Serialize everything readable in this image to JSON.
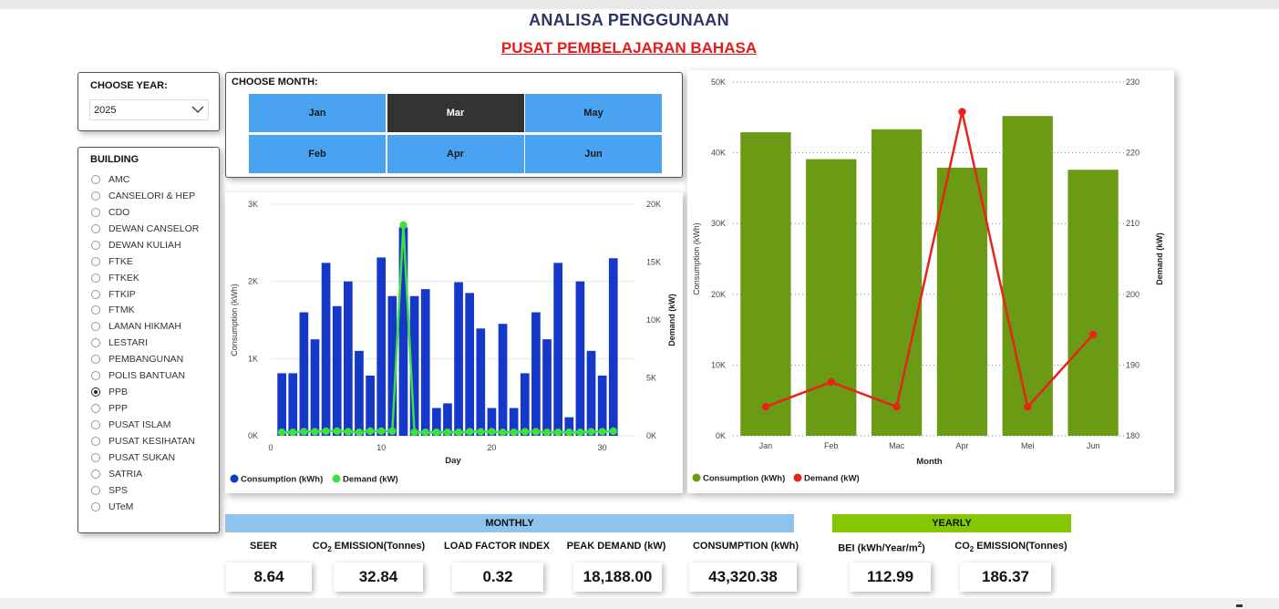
{
  "header": {
    "title": "ANALISA PENGGUNAAN",
    "subtitle": "PUSAT PEMBELAJARAN BAHASA"
  },
  "year_filter": {
    "label": "CHOOSE YEAR:",
    "selected": "2025"
  },
  "building_filter": {
    "label": "BUILDING",
    "selected": "PPB",
    "items": [
      "AMC",
      "CANSELORI & HEP",
      "CDO",
      "DEWAN CANSELOR",
      "DEWAN KULIAH",
      "FTKE",
      "FTKEK",
      "FTKIP",
      "FTMK",
      "LAMAN HIKMAH",
      "LESTARI",
      "PEMBANGUNAN",
      "POLIS BANTUAN",
      "PPB",
      "PPP",
      "PUSAT ISLAM",
      "PUSAT KESIHATAN",
      "PUSAT SUKAN",
      "SATRIA",
      "SPS",
      "UTeM"
    ]
  },
  "month_filter": {
    "label": "CHOOSE MONTH:",
    "selected": "Mar",
    "buttons": [
      "Jan",
      "Mar",
      "May",
      "Feb",
      "Apr",
      "Jun"
    ]
  },
  "chart_data": [
    {
      "id": "daily",
      "type": "bar",
      "title": "",
      "xlabel": "Day",
      "ylabel": "Consumption (kWh)",
      "y2label": "Demand (kW)",
      "xlim": [
        0,
        33
      ],
      "xticks": [
        0,
        10,
        20,
        30
      ],
      "ylim": [
        0,
        3000
      ],
      "yticks": [
        0,
        1000,
        2000,
        3000
      ],
      "ytick_labels": [
        "0K",
        "1K",
        "2K",
        "3K"
      ],
      "y2lim": [
        0,
        20000
      ],
      "y2ticks": [
        0,
        5000,
        10000,
        15000,
        20000
      ],
      "y2tick_labels": [
        "0K",
        "5K",
        "10K",
        "15K",
        "20K"
      ],
      "x": [
        1,
        2,
        3,
        4,
        5,
        6,
        7,
        8,
        9,
        10,
        11,
        12,
        13,
        14,
        15,
        16,
        17,
        18,
        19,
        20,
        21,
        22,
        23,
        24,
        25,
        26,
        27,
        28,
        29,
        30,
        31
      ],
      "series": [
        {
          "name": "Consumption (kWh)",
          "kind": "bar",
          "axis": "left",
          "color": "#1538c8",
          "values": [
            810,
            810,
            1600,
            1250,
            2240,
            1680,
            2000,
            1100,
            780,
            2310,
            1810,
            2700,
            1810,
            1900,
            360,
            420,
            1990,
            1850,
            1390,
            360,
            1450,
            360,
            810,
            1600,
            1250,
            2240,
            240,
            2000,
            1100,
            780,
            2300
          ]
        },
        {
          "name": "Demand (kW)",
          "kind": "line",
          "axis": "right",
          "color": "#3ee03e",
          "values": [
            300,
            300,
            350,
            350,
            400,
            400,
            350,
            300,
            400,
            400,
            400,
            18188,
            300,
            300,
            300,
            300,
            300,
            350,
            350,
            350,
            300,
            300,
            350,
            350,
            300,
            300,
            300,
            300,
            350,
            350,
            400
          ]
        }
      ],
      "legend": "bottom-left"
    },
    {
      "id": "monthly",
      "type": "bar",
      "title": "",
      "xlabel": "Month",
      "ylabel": "Consumption (kWh)",
      "y2label": "Demand (kW)",
      "categories": [
        "Jan",
        "Feb",
        "Mac",
        "Apr",
        "Mei",
        "Jun"
      ],
      "ylim": [
        0,
        50000
      ],
      "yticks": [
        0,
        10000,
        20000,
        30000,
        40000,
        50000
      ],
      "ytick_labels": [
        "0K",
        "10K",
        "20K",
        "30K",
        "40K",
        "50K"
      ],
      "y2lim": [
        180,
        230
      ],
      "y2ticks": [
        180,
        190,
        200,
        210,
        220,
        230
      ],
      "y2tick_labels": [
        "180",
        "190",
        "200",
        "210",
        "220",
        "230"
      ],
      "series": [
        {
          "name": "Consumption (kWh)",
          "kind": "bar",
          "axis": "left",
          "color": "#6b9b14",
          "values": [
            42900,
            39100,
            43320,
            37900,
            45200,
            37600
          ]
        },
        {
          "name": "Demand (kW)",
          "kind": "line",
          "axis": "right",
          "color": "#e8241a",
          "values": [
            184.1,
            187.6,
            184.1,
            225.8,
            184.1,
            194.3
          ]
        }
      ],
      "legend": "bottom-left"
    }
  ],
  "kpi": {
    "monthly_header": "MONTHLY",
    "yearly_header": "YEARLY",
    "seer_label": "SEER",
    "seer_value": "8.64",
    "co2_label_prefix": "CO",
    "co2_label_sub": "2",
    "co2_label_suffix": " EMISSION(Tonnes)",
    "co2_value": "32.84",
    "load_factor_label": "LOAD FACTOR INDEX",
    "load_factor_value": "0.32",
    "peak_demand_label": "PEAK DEMAND (kW)",
    "peak_demand_value": "18,188.00",
    "consumption_label": "CONSUMPTION (kWh)",
    "consumption_value": "43,320.38",
    "bei_label_prefix": "BEI (kWh/Year/m",
    "bei_label_sup": "2",
    "bei_label_suffix": ")",
    "bei_value": "112.99",
    "yearly_co2_label_prefix": "CO",
    "yearly_co2_label_sub": "2",
    "yearly_co2_label_suffix": " EMISSION(Tonnes)",
    "yearly_co2_value": "186.37"
  }
}
